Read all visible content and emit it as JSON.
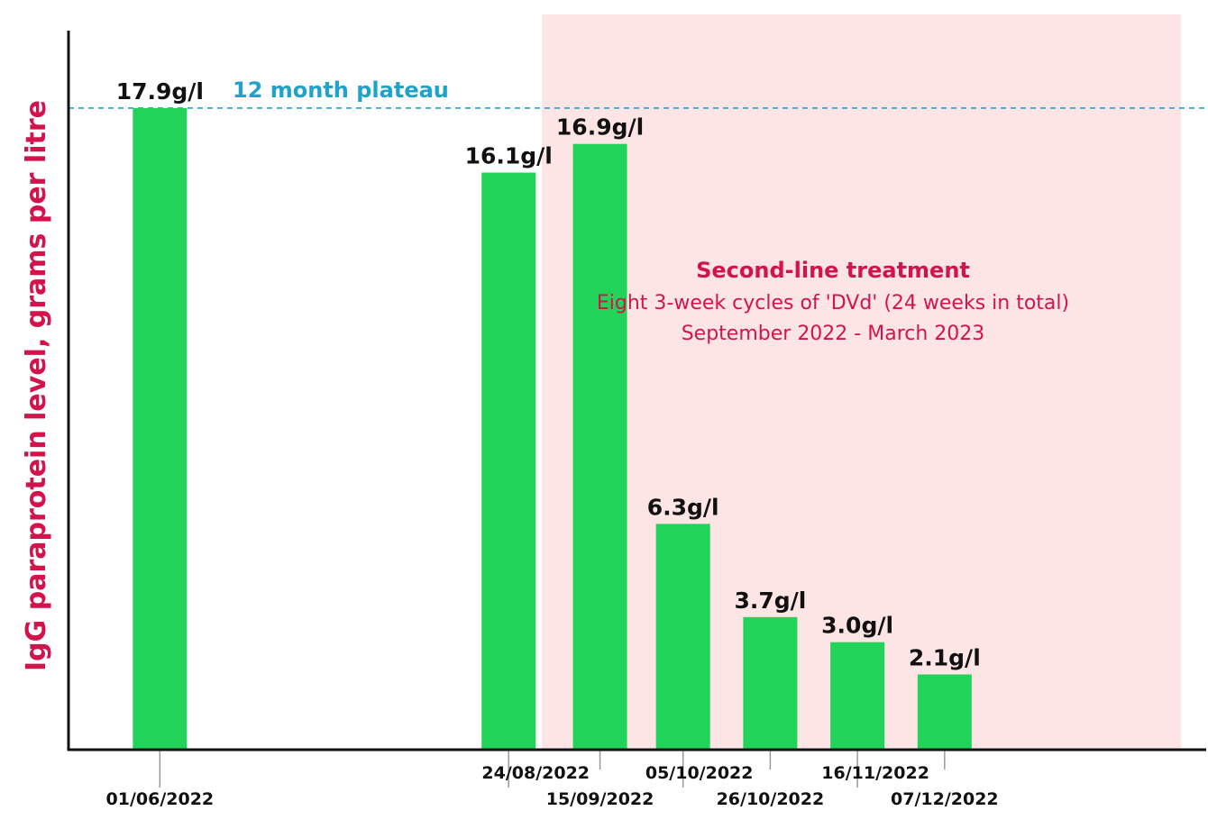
{
  "colors": {
    "bar": "#22d35a",
    "shade": "#fde5e5",
    "plateau": "#1ea3cc",
    "accent": "#d4134c",
    "axis": "#111111"
  },
  "chart_data": {
    "type": "bar",
    "title": "",
    "ylabel": "IgG paraprotein level, grams per litre",
    "xlabel": "",
    "grid": false,
    "ylim": [
      0,
      20
    ],
    "x_range": [
      "2022-05-10",
      "2023-02-08"
    ],
    "categories": [
      "01/06/2022",
      "24/08/2022",
      "15/09/2022",
      "05/10/2022",
      "26/10/2022",
      "16/11/2022",
      "07/12/2022"
    ],
    "dates": [
      "2022-06-01",
      "2022-08-24",
      "2022-09-15",
      "2022-10-05",
      "2022-10-26",
      "2022-11-16",
      "2022-12-07"
    ],
    "values": [
      17.9,
      16.1,
      16.9,
      6.3,
      3.7,
      3.0,
      2.1
    ],
    "data_labels": [
      "17.9g/l",
      "16.1g/l",
      "16.9g/l",
      "6.3g/l",
      "3.7g/l",
      "3.0g/l",
      "2.1g/l"
    ],
    "reference_line": {
      "label": "12 month plateau",
      "value": 17.9,
      "style": "dashed"
    },
    "shaded_region": {
      "start": "2022-09-01",
      "end": "2023-02-08",
      "title": "Second-line treatment",
      "line1": "Eight 3-week cycles of 'DVd' (24 weeks in total)",
      "line2": "September 2022 - March 2023"
    }
  }
}
